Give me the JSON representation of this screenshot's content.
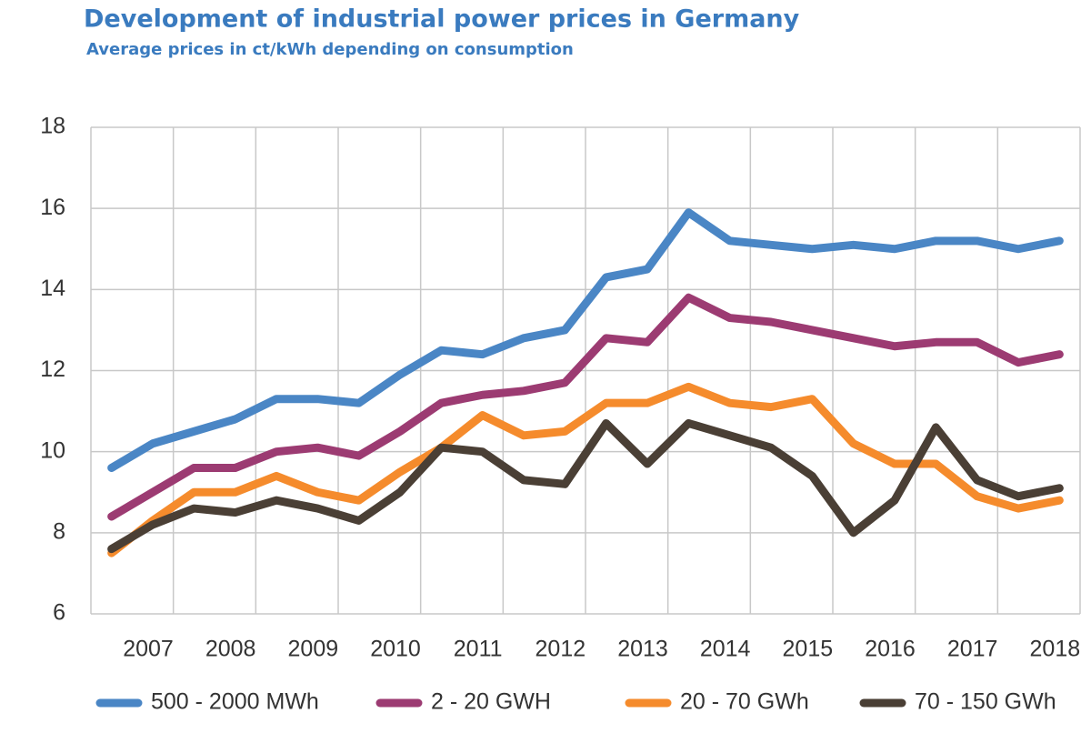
{
  "chart_data": {
    "type": "line",
    "title": "Development of industrial power prices in Germany",
    "subtitle": "Average prices in ct/kWh depending on consumption",
    "categories": [
      null,
      "2007",
      null,
      "2008",
      null,
      "2009",
      null,
      "2010",
      null,
      "2011",
      null,
      "2012",
      null,
      "2013",
      null,
      "2014",
      null,
      "2015",
      null,
      "2016",
      null,
      "2017",
      null,
      "2018"
    ],
    "series": [
      {
        "name": "500 - 2000 MWh",
        "color": "#4a86c5",
        "values": [
          9.6,
          10.2,
          10.5,
          10.8,
          11.3,
          11.3,
          11.2,
          11.9,
          12.5,
          12.4,
          12.8,
          13.0,
          14.3,
          14.5,
          15.9,
          15.2,
          15.1,
          15.0,
          15.1,
          15.0,
          15.2,
          15.2,
          15.0,
          15.2
        ]
      },
      {
        "name": "2 - 20 GWH",
        "color": "#9c3b72",
        "values": [
          8.4,
          9.0,
          9.6,
          9.6,
          10.0,
          10.1,
          9.9,
          10.5,
          11.2,
          11.4,
          11.5,
          11.7,
          12.8,
          12.7,
          13.8,
          13.3,
          13.2,
          13.0,
          12.8,
          12.6,
          12.7,
          12.7,
          12.2,
          12.4
        ]
      },
      {
        "name": "20 - 70 GWh",
        "color": "#f58b2c",
        "values": [
          7.5,
          8.3,
          9.0,
          9.0,
          9.4,
          9.0,
          8.8,
          9.5,
          10.1,
          10.9,
          10.4,
          10.5,
          11.2,
          11.2,
          11.6,
          11.2,
          11.1,
          11.3,
          10.2,
          9.7,
          9.7,
          8.9,
          8.6,
          8.8
        ]
      },
      {
        "name": "70 - 150 GWh",
        "color": "#4a3f35",
        "values": [
          7.6,
          8.2,
          8.6,
          8.5,
          8.8,
          8.6,
          8.3,
          9.0,
          10.1,
          10.0,
          9.3,
          9.2,
          10.7,
          9.7,
          10.7,
          10.4,
          10.1,
          9.4,
          8.0,
          8.8,
          10.6,
          9.3,
          8.9,
          9.1
        ]
      }
    ],
    "ylim": [
      6,
      18
    ],
    "yticks": [
      6,
      8,
      10,
      12,
      14,
      16,
      18
    ],
    "grid": true,
    "legend": "bottom"
  }
}
